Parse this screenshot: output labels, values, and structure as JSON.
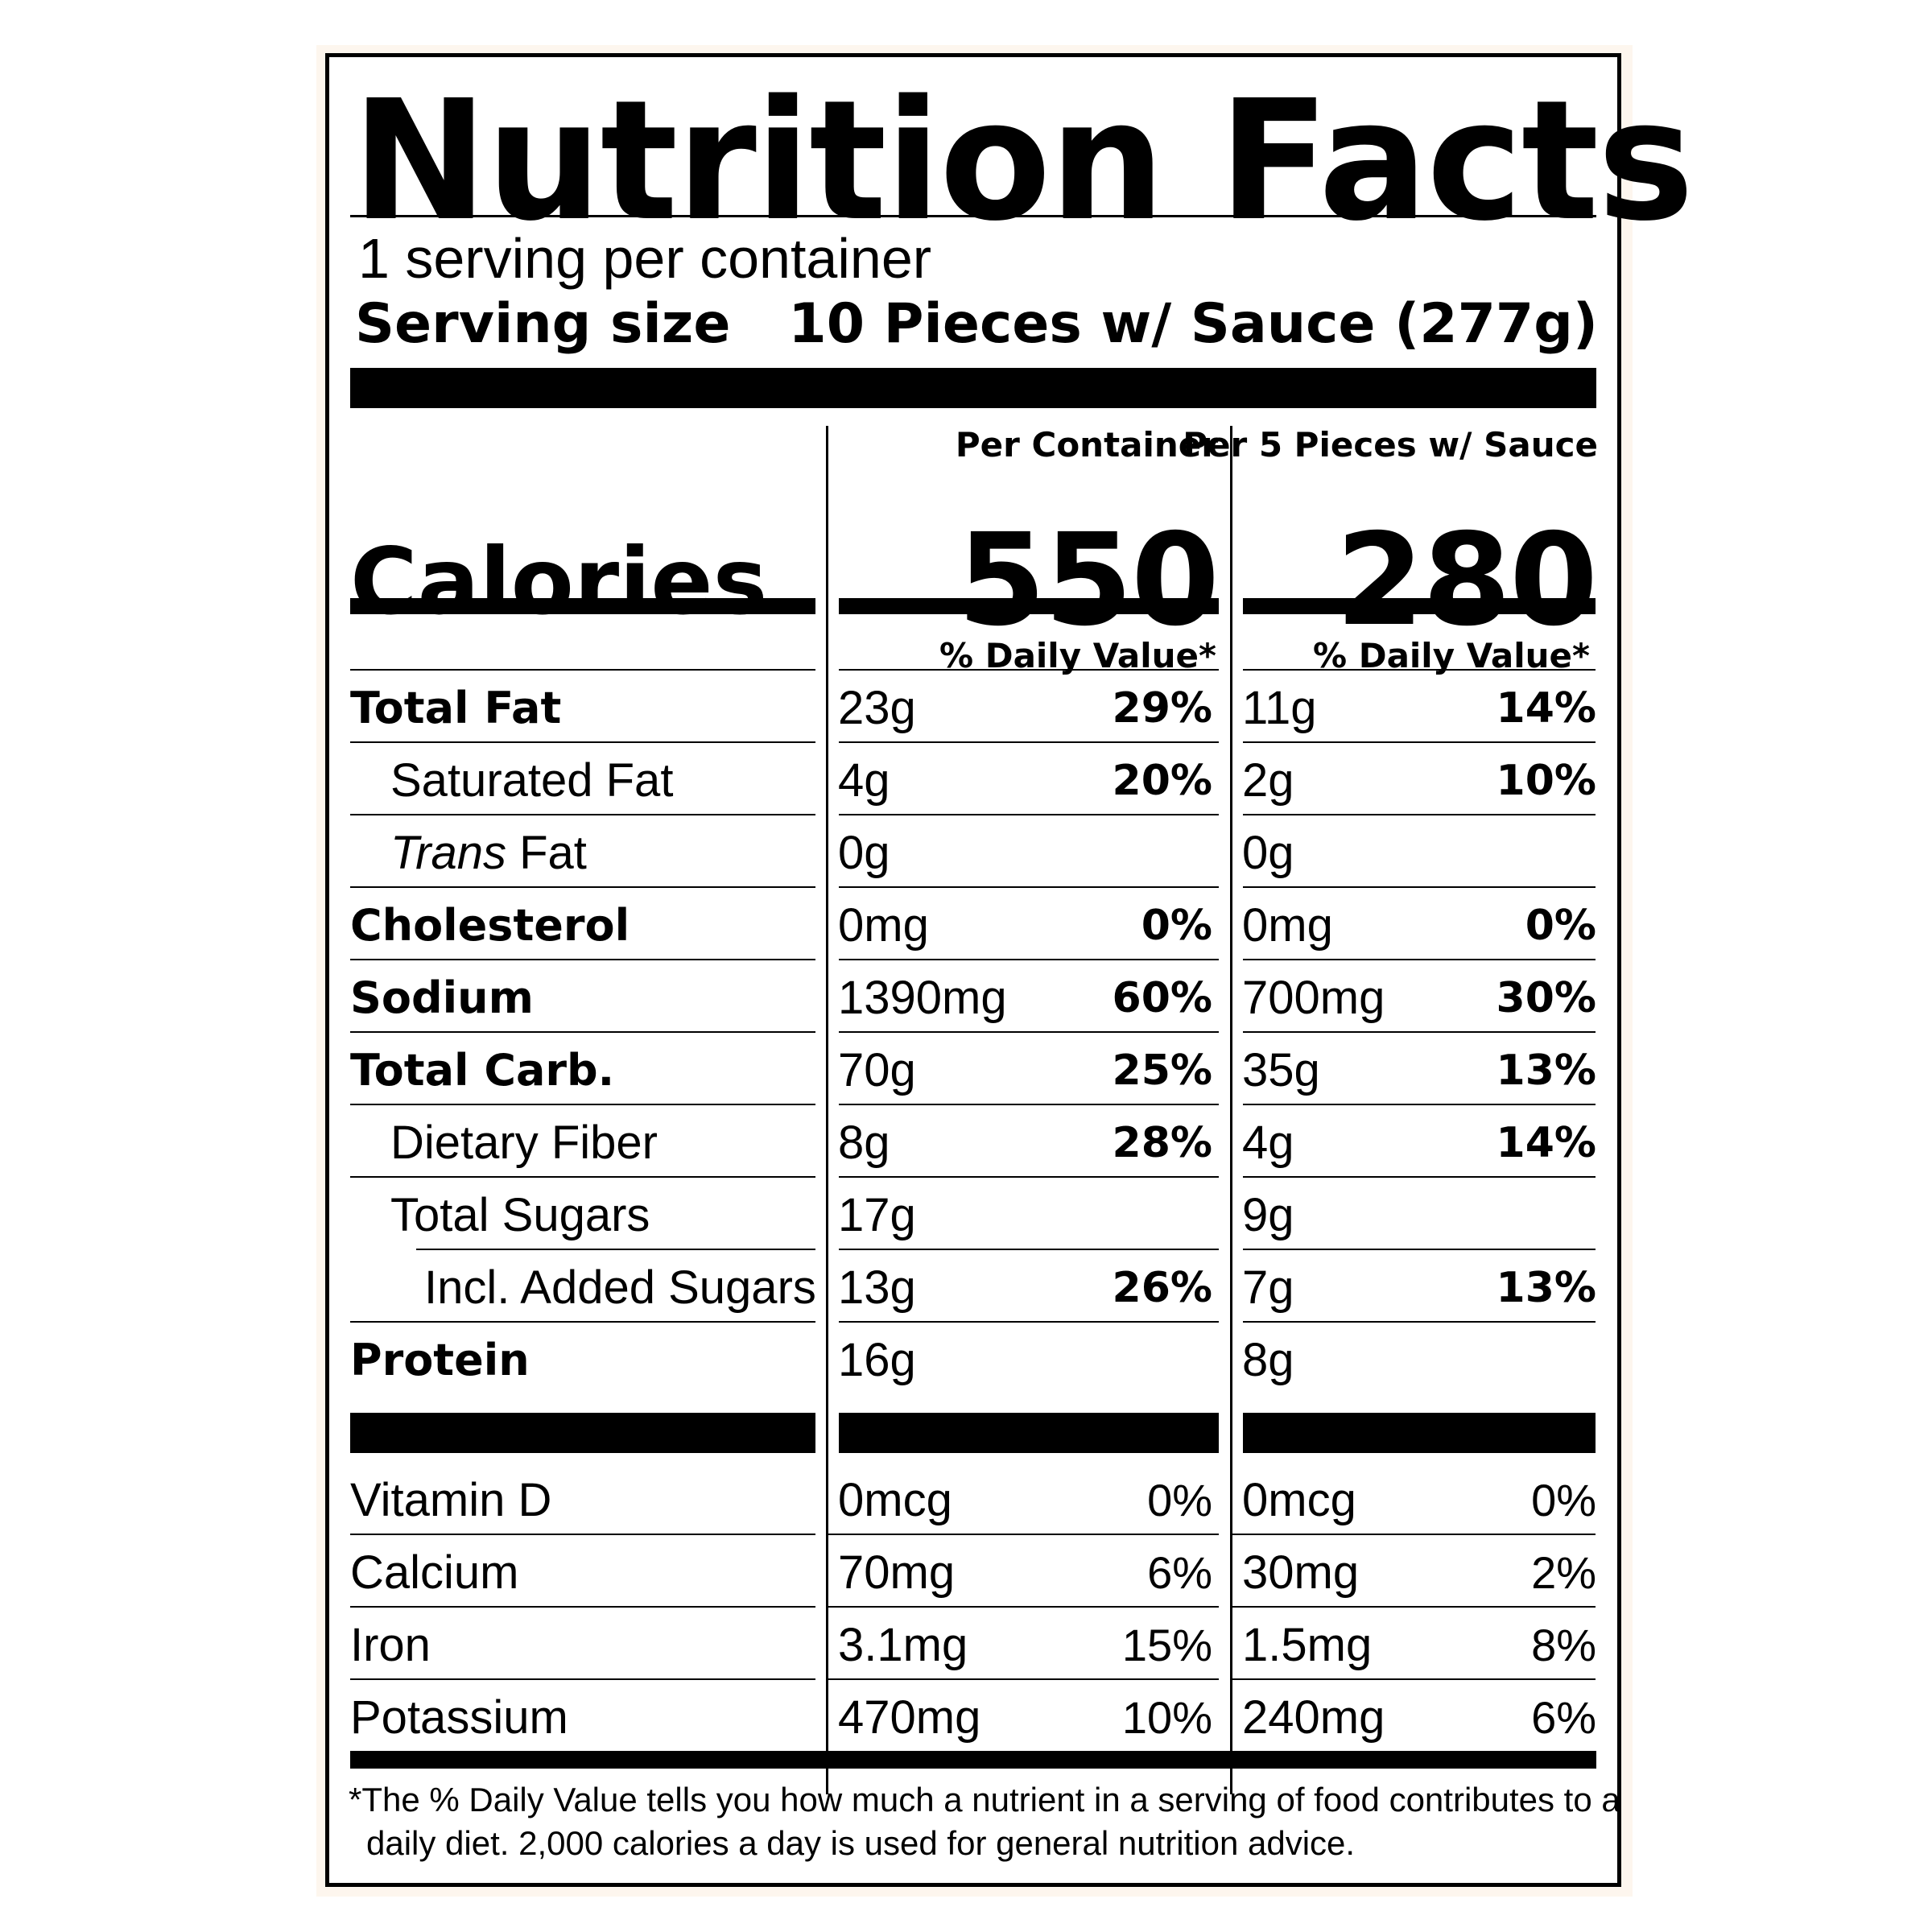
{
  "title": "Nutrition Facts",
  "servings_per_container": "1 serving per container",
  "serving_size_label": "Serving size",
  "serving_size_value": "10 Pieces w/ Sauce (277g)",
  "columns": [
    {
      "header": "Per Container",
      "calories": "550",
      "dv_header": "% Daily Value*"
    },
    {
      "header": "Per 5 Pieces w/ Sauce",
      "calories": "280",
      "dv_header": "% Daily Value*"
    }
  ],
  "calories_label": "Calories",
  "nutrients": [
    {
      "name": "Total Fat",
      "style": "bold",
      "values": [
        {
          "amount": "23g",
          "dv": "29%"
        },
        {
          "amount": "11g",
          "dv": "14%"
        }
      ]
    },
    {
      "name": "Saturated Fat",
      "style": "indent",
      "values": [
        {
          "amount": "4g",
          "dv": "20%"
        },
        {
          "amount": "2g",
          "dv": "10%"
        }
      ]
    },
    {
      "name_italic": "Trans",
      "name": " Fat",
      "style": "indent",
      "values": [
        {
          "amount": "0g",
          "dv": ""
        },
        {
          "amount": "0g",
          "dv": ""
        }
      ]
    },
    {
      "name": "Cholesterol",
      "style": "bold",
      "values": [
        {
          "amount": "0mg",
          "dv": "0%"
        },
        {
          "amount": "0mg",
          "dv": "0%"
        }
      ]
    },
    {
      "name": "Sodium",
      "style": "bold",
      "values": [
        {
          "amount": "1390mg",
          "dv": "60%"
        },
        {
          "amount": "700mg",
          "dv": "30%"
        }
      ]
    },
    {
      "name": "Total Carb.",
      "style": "bold",
      "values": [
        {
          "amount": "70g",
          "dv": "25%"
        },
        {
          "amount": "35g",
          "dv": "13%"
        }
      ]
    },
    {
      "name": "Dietary Fiber",
      "style": "indent",
      "values": [
        {
          "amount": "8g",
          "dv": "28%"
        },
        {
          "amount": "4g",
          "dv": "14%"
        }
      ]
    },
    {
      "name": "Total Sugars",
      "style": "indent",
      "values": [
        {
          "amount": "17g",
          "dv": ""
        },
        {
          "amount": "9g",
          "dv": ""
        }
      ]
    },
    {
      "name": "Incl. Added Sugars",
      "style": "indent2",
      "values": [
        {
          "amount": "13g",
          "dv": "26%"
        },
        {
          "amount": "7g",
          "dv": "13%"
        }
      ]
    },
    {
      "name": "Protein",
      "style": "bold",
      "values": [
        {
          "amount": "16g",
          "dv": ""
        },
        {
          "amount": "8g",
          "dv": ""
        }
      ]
    }
  ],
  "vitamins": [
    {
      "name": "Vitamin D",
      "values": [
        {
          "amount": "0mcg",
          "dv": "0%"
        },
        {
          "amount": "0mcg",
          "dv": "0%"
        }
      ]
    },
    {
      "name": "Calcium",
      "values": [
        {
          "amount": "70mg",
          "dv": "6%"
        },
        {
          "amount": "30mg",
          "dv": "2%"
        }
      ]
    },
    {
      "name": "Iron",
      "values": [
        {
          "amount": "3.1mg",
          "dv": "15%"
        },
        {
          "amount": "1.5mg",
          "dv": "8%"
        }
      ]
    },
    {
      "name": "Potassium",
      "values": [
        {
          "amount": "470mg",
          "dv": "10%"
        },
        {
          "amount": "240mg",
          "dv": "6%"
        }
      ]
    }
  ],
  "footnote_line1": "*The % Daily Value tells you how much a nutrient in a serving of food contributes to a",
  "footnote_line2": "daily diet. 2,000 calories a day is used for general  nutrition advice."
}
